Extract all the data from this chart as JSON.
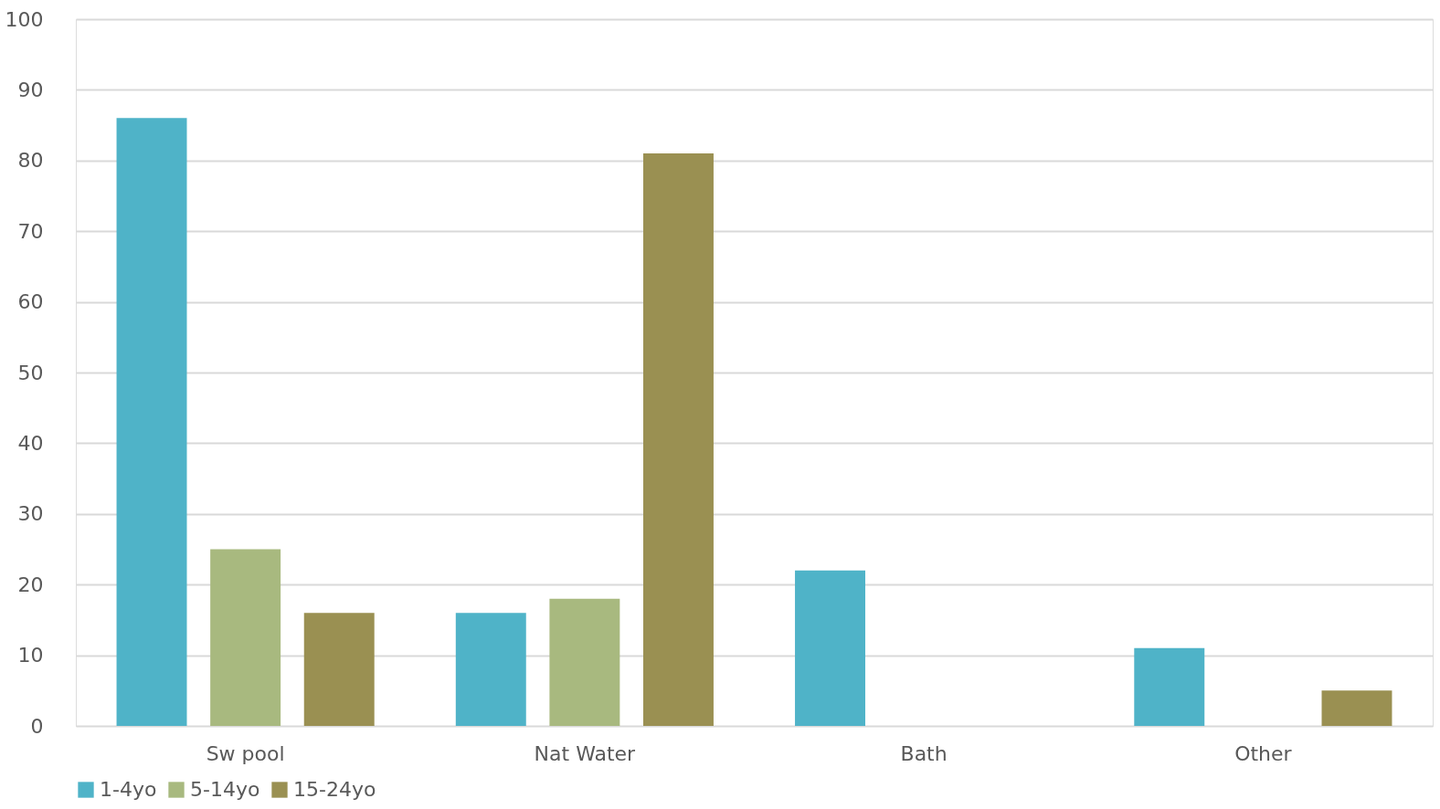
{
  "chart_data": {
    "type": "bar",
    "categories": [
      "Sw pool",
      "Nat Water",
      "Bath",
      "Other"
    ],
    "series": [
      {
        "name": "1-4yo",
        "color": "#4fb3c8",
        "values": [
          86,
          16,
          22,
          11
        ]
      },
      {
        "name": "5-14yo",
        "color": "#a8b97f",
        "values": [
          25,
          18,
          0,
          0
        ]
      },
      {
        "name": "15-24yo",
        "color": "#9a9052",
        "values": [
          16,
          81,
          0,
          5
        ]
      }
    ],
    "ylim": [
      0,
      100
    ],
    "yticks": [
      0,
      10,
      20,
      30,
      40,
      50,
      60,
      70,
      80,
      90,
      100
    ],
    "grid": "y",
    "legend": "bottom"
  }
}
